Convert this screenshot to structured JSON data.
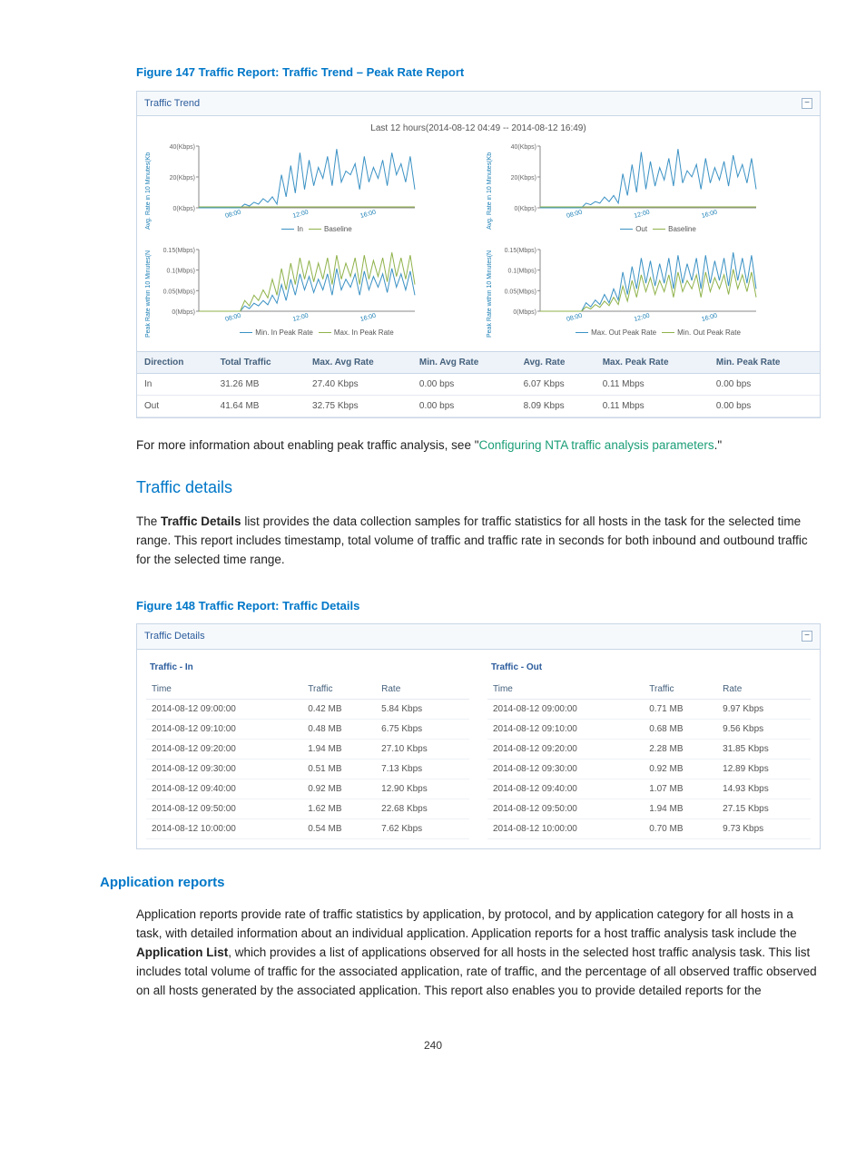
{
  "figure147": {
    "caption": "Figure 147 Traffic Report: Traffic Trend – Peak Rate Report",
    "panel_title": "Traffic Trend",
    "subtitle": "Last 12 hours(2014-08-12 04:49 -- 2014-08-12 16:49)",
    "charts": [
      {
        "y_label": "Avg. Rate in 10 Minutes(Kb",
        "y_ticks": [
          "40(Kbps)",
          "20(Kbps)",
          "0(Kbps)"
        ],
        "x_ticks": [
          "08:00",
          "12:00",
          "16:00"
        ],
        "legend": [
          {
            "color": "#3a91c4",
            "label": "In"
          },
          {
            "color": "#8fb24a",
            "label": "Baseline"
          }
        ],
        "series_color": "#3a91c4",
        "baseline_color": "#8fb24a",
        "values": [
          0,
          0,
          0,
          0,
          0,
          0,
          0,
          0,
          0,
          0,
          2,
          1,
          3,
          2,
          5,
          3,
          6,
          2,
          18,
          6,
          23,
          8,
          30,
          10,
          26,
          12,
          22,
          16,
          28,
          12,
          32,
          14,
          20,
          18,
          24,
          10,
          28,
          14,
          22,
          16,
          26,
          12,
          30,
          18,
          24,
          14,
          28,
          10
        ]
      },
      {
        "y_label": "Avg. Rate in 10 Minutes(Kb",
        "y_ticks": [
          "40(Kbps)",
          "20(Kbps)",
          "0(Kbps)"
        ],
        "x_ticks": [
          "08:00",
          "12:00",
          "16:00"
        ],
        "legend": [
          {
            "color": "#3a91c4",
            "label": "Out"
          },
          {
            "color": "#8fb24a",
            "label": "Baseline"
          }
        ],
        "series_color": "#3a91c4",
        "baseline_color": "#8fb24a",
        "values": [
          0,
          0,
          0,
          0,
          0,
          0,
          0,
          0,
          0,
          0,
          3,
          2,
          4,
          3,
          7,
          4,
          8,
          3,
          22,
          8,
          28,
          10,
          36,
          12,
          30,
          14,
          26,
          18,
          32,
          14,
          38,
          16,
          24,
          20,
          28,
          12,
          32,
          16,
          26,
          18,
          30,
          14,
          34,
          20,
          28,
          16,
          32,
          12
        ]
      },
      {
        "y_label": "Peak Rate within 10 Minutes(N",
        "y_ticks": [
          "0.15(Mbps)",
          "0.1(Mbps)",
          "0.05(Mbps)",
          "0(Mbps)"
        ],
        "x_ticks": [
          "08:00",
          "12:00",
          "16:00"
        ],
        "legend": [
          {
            "color": "#3a91c4",
            "label": "Min. In Peak Rate"
          },
          {
            "color": "#8fb24a",
            "label": "Max. In Peak Rate"
          }
        ],
        "series_color": "#3a91c4",
        "series2_color": "#8fb24a",
        "values": [
          0,
          0,
          0,
          0,
          0,
          0,
          0,
          0,
          0,
          0,
          0.01,
          0.005,
          0.015,
          0.01,
          0.02,
          0.012,
          0.03,
          0.015,
          0.05,
          0.02,
          0.06,
          0.03,
          0.07,
          0.04,
          0.065,
          0.035,
          0.06,
          0.04,
          0.07,
          0.03,
          0.08,
          0.04,
          0.06,
          0.045,
          0.07,
          0.03,
          0.075,
          0.04,
          0.065,
          0.045,
          0.07,
          0.035,
          0.08,
          0.045,
          0.07,
          0.04,
          0.075,
          0.03
        ],
        "values2": [
          0,
          0,
          0,
          0,
          0,
          0,
          0,
          0,
          0,
          0,
          0.02,
          0.01,
          0.03,
          0.02,
          0.04,
          0.025,
          0.06,
          0.03,
          0.08,
          0.04,
          0.09,
          0.05,
          0.1,
          0.06,
          0.095,
          0.055,
          0.09,
          0.06,
          0.1,
          0.05,
          0.105,
          0.06,
          0.09,
          0.065,
          0.1,
          0.05,
          0.105,
          0.06,
          0.095,
          0.065,
          0.1,
          0.055,
          0.11,
          0.065,
          0.1,
          0.06,
          0.105,
          0.05
        ]
      },
      {
        "y_label": "Peak Rate within 10 Minutes(N",
        "y_ticks": [
          "0.15(Mbps)",
          "0.1(Mbps)",
          "0.05(Mbps)",
          "0(Mbps)"
        ],
        "x_ticks": [
          "08:00",
          "12:00",
          "16:00"
        ],
        "legend": [
          {
            "color": "#3a91c4",
            "label": "Max. Out Peak Rate"
          },
          {
            "color": "#8fb24a",
            "label": "Min. Out Peak Rate"
          }
        ],
        "series_color": "#3a91c4",
        "series2_color": "#8fb24a",
        "values": [
          0,
          0,
          0,
          0,
          0,
          0,
          0,
          0,
          0,
          0,
          0.015,
          0.008,
          0.02,
          0.012,
          0.03,
          0.015,
          0.04,
          0.02,
          0.07,
          0.03,
          0.08,
          0.04,
          0.095,
          0.05,
          0.09,
          0.045,
          0.085,
          0.05,
          0.095,
          0.04,
          0.1,
          0.05,
          0.085,
          0.055,
          0.095,
          0.04,
          0.1,
          0.05,
          0.09,
          0.055,
          0.095,
          0.045,
          0.105,
          0.055,
          0.095,
          0.05,
          0.1,
          0.04
        ],
        "values2": [
          0,
          0,
          0,
          0,
          0,
          0,
          0,
          0,
          0,
          0,
          0.008,
          0.004,
          0.012,
          0.007,
          0.018,
          0.01,
          0.025,
          0.012,
          0.045,
          0.018,
          0.055,
          0.025,
          0.065,
          0.035,
          0.06,
          0.03,
          0.055,
          0.035,
          0.065,
          0.025,
          0.07,
          0.035,
          0.055,
          0.04,
          0.065,
          0.025,
          0.07,
          0.035,
          0.06,
          0.04,
          0.065,
          0.03,
          0.075,
          0.04,
          0.065,
          0.035,
          0.07,
          0.025
        ]
      }
    ],
    "summary_headers": [
      "Direction",
      "Total Traffic",
      "Max. Avg Rate",
      "Min. Avg Rate",
      "Avg. Rate",
      "Max. Peak Rate",
      "Min. Peak Rate"
    ],
    "summary_rows": [
      [
        "In",
        "31.26 MB",
        "27.40 Kbps",
        "0.00 bps",
        "6.07 Kbps",
        "0.11 Mbps",
        "0.00 bps"
      ],
      [
        "Out",
        "41.64 MB",
        "32.75 Kbps",
        "0.00 bps",
        "8.09 Kbps",
        "0.11 Mbps",
        "0.00 bps"
      ]
    ]
  },
  "para1_pre": "For more information about enabling peak traffic analysis, see \"",
  "para1_link": "Configuring NTA traffic analysis parameters",
  "para1_post": ".\"",
  "h2_traffic_details": "Traffic details",
  "para2": "The Traffic Details list provides the data collection samples for traffic statistics for all hosts in the task for the selected time range. This report includes timestamp, total volume of traffic and traffic rate in seconds for both inbound and outbound traffic for the selected time range.",
  "para2_bold": "Traffic Details",
  "figure148": {
    "caption": "Figure 148 Traffic Report: Traffic Details",
    "panel_title": "Traffic Details",
    "col_in_title": "Traffic - In",
    "col_out_title": "Traffic - Out",
    "headers": [
      "Time",
      "Traffic",
      "Rate"
    ],
    "rows_in": [
      [
        "2014-08-12 09:00:00",
        "0.42 MB",
        "5.84 Kbps"
      ],
      [
        "2014-08-12 09:10:00",
        "0.48 MB",
        "6.75 Kbps"
      ],
      [
        "2014-08-12 09:20:00",
        "1.94 MB",
        "27.10 Kbps"
      ],
      [
        "2014-08-12 09:30:00",
        "0.51 MB",
        "7.13 Kbps"
      ],
      [
        "2014-08-12 09:40:00",
        "0.92 MB",
        "12.90 Kbps"
      ],
      [
        "2014-08-12 09:50:00",
        "1.62 MB",
        "22.68 Kbps"
      ],
      [
        "2014-08-12 10:00:00",
        "0.54 MB",
        "7.62 Kbps"
      ]
    ],
    "rows_out": [
      [
        "2014-08-12 09:00:00",
        "0.71 MB",
        "9.97 Kbps"
      ],
      [
        "2014-08-12 09:10:00",
        "0.68 MB",
        "9.56 Kbps"
      ],
      [
        "2014-08-12 09:20:00",
        "2.28 MB",
        "31.85 Kbps"
      ],
      [
        "2014-08-12 09:30:00",
        "0.92 MB",
        "12.89 Kbps"
      ],
      [
        "2014-08-12 09:40:00",
        "1.07 MB",
        "14.93 Kbps"
      ],
      [
        "2014-08-12 09:50:00",
        "1.94 MB",
        "27.15 Kbps"
      ],
      [
        "2014-08-12 10:00:00",
        "0.70 MB",
        "9.73 Kbps"
      ]
    ]
  },
  "h3_app_reports": "Application reports",
  "para3": "Application reports provide rate of traffic statistics by application, by protocol, and by application category for all hosts in a task, with detailed information about an individual application. Application reports for a host traffic analysis task include the Application List, which provides a list of applications observed for all hosts in the selected host traffic analysis task. This list includes total volume of traffic for the associated application, rate of traffic, and the percentage of all observed traffic observed on all hosts generated by the associated application. This report also enables you to provide detailed reports for the",
  "para3_bold": "Application List",
  "page_number": "240"
}
